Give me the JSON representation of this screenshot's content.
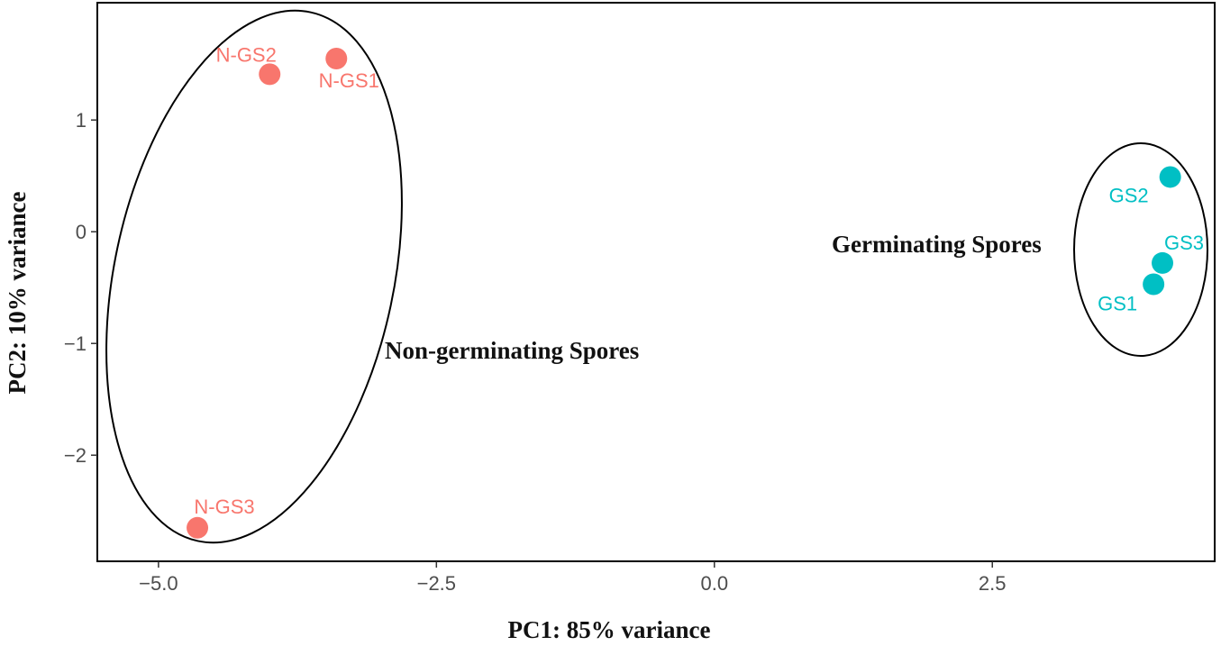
{
  "chart_data": {
    "type": "scatter",
    "xlabel": "PC1: 85% variance",
    "ylabel": "PC2: 10% variance",
    "xlim": [
      -5.55,
      4.5
    ],
    "ylim": [
      -2.95,
      2.05
    ],
    "x_ticks": [
      -5.0,
      -2.5,
      0.0,
      2.5
    ],
    "x_tick_labels": [
      "−5.0",
      "−2.5",
      "0.0",
      "2.5"
    ],
    "y_ticks": [
      1,
      0,
      -1,
      -2
    ],
    "y_tick_labels": [
      "1",
      "0",
      "−1",
      "−2"
    ],
    "grid": false,
    "legend": "none",
    "series": [
      {
        "color": "#F8766D",
        "points": [
          {
            "label": "N-GS1",
            "x": -3.4,
            "y": 1.55
          },
          {
            "label": "N-GS2",
            "x": -4.0,
            "y": 1.41
          },
          {
            "label": "N-GS3",
            "x": -4.65,
            "y": -2.65
          }
        ]
      },
      {
        "color": "#00BFC4",
        "points": [
          {
            "label": "GS1",
            "x": 3.95,
            "y": -0.47
          },
          {
            "label": "GS2",
            "x": 4.1,
            "y": 0.49
          },
          {
            "label": "GS3",
            "x": 4.03,
            "y": -0.28
          }
        ]
      }
    ],
    "annotations": [
      {
        "text": "Non-germinating Spores"
      },
      {
        "text": "Germinating Spores"
      }
    ]
  }
}
